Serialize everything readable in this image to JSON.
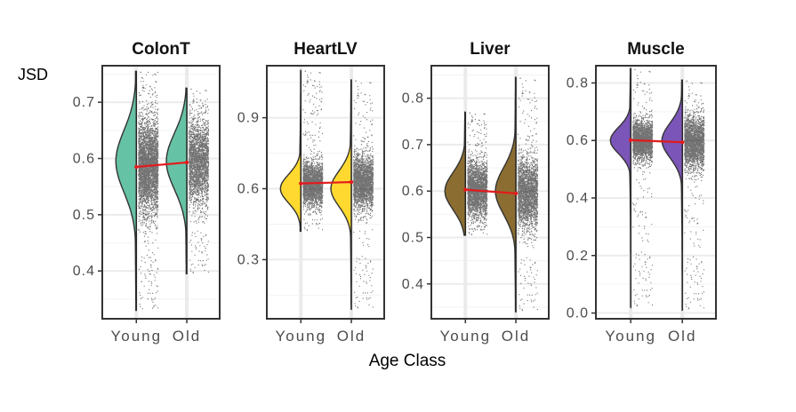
{
  "chart_data": {
    "type": "raincloud",
    "ylabel": "JSD",
    "xlabel": "Age Class",
    "categories": [
      "Young",
      "Old"
    ],
    "mean_line_color": "#e31a1c",
    "panels": [
      {
        "title": "ColonT",
        "fill": "#66c2a5",
        "ylim": [
          0.315,
          0.765
        ],
        "yticks": [
          0.4,
          0.5,
          0.6,
          0.7
        ],
        "ytick_labels": [
          "0.4",
          "0.5",
          "0.6",
          "0.7"
        ],
        "means": [
          0.585,
          0.593
        ],
        "groups": [
          {
            "name": "Young",
            "min": 0.33,
            "max": 0.755,
            "center": 0.585,
            "spread": 0.055,
            "peak": 0.595
          },
          {
            "name": "Old",
            "min": 0.395,
            "max": 0.725,
            "center": 0.593,
            "spread": 0.05,
            "peak": 0.595
          }
        ]
      },
      {
        "title": "HeartLV",
        "fill": "#ffd92f",
        "ylim": [
          0.05,
          1.12
        ],
        "yticks": [
          0.3,
          0.6,
          0.9
        ],
        "ytick_labels": [
          "0.3",
          "0.6",
          "0.9"
        ],
        "means": [
          0.622,
          0.628
        ],
        "groups": [
          {
            "name": "Young",
            "min": 0.42,
            "max": 1.1,
            "center": 0.62,
            "spread": 0.06,
            "peak": 0.6
          },
          {
            "name": "Old",
            "min": 0.09,
            "max": 1.06,
            "center": 0.628,
            "spread": 0.075,
            "peak": 0.6
          }
        ]
      },
      {
        "title": "Liver",
        "fill": "#8c6d31",
        "ylim": [
          0.325,
          0.87
        ],
        "yticks": [
          0.4,
          0.5,
          0.6,
          0.7,
          0.8
        ],
        "ytick_labels": [
          "0.4",
          "0.5",
          "0.6",
          "0.7",
          "0.8"
        ],
        "means": [
          0.603,
          0.595
        ],
        "groups": [
          {
            "name": "Young",
            "min": 0.505,
            "max": 0.77,
            "center": 0.603,
            "spread": 0.04,
            "peak": 0.6
          },
          {
            "name": "Old",
            "min": 0.34,
            "max": 0.845,
            "center": 0.595,
            "spread": 0.05,
            "peak": 0.6
          }
        ]
      },
      {
        "title": "Muscle",
        "fill": "#7b55b8",
        "ylim": [
          -0.02,
          0.86
        ],
        "yticks": [
          0.0,
          0.2,
          0.4,
          0.6,
          0.8
        ],
        "ytick_labels": [
          "0.0",
          "0.2",
          "0.4",
          "0.6",
          "0.8"
        ],
        "means": [
          0.601,
          0.594
        ],
        "groups": [
          {
            "name": "Young",
            "min": 0.02,
            "max": 0.85,
            "center": 0.601,
            "spread": 0.045,
            "peak": 0.6
          },
          {
            "name": "Old",
            "min": 0.01,
            "max": 0.81,
            "center": 0.594,
            "spread": 0.06,
            "peak": 0.6
          }
        ]
      }
    ]
  }
}
